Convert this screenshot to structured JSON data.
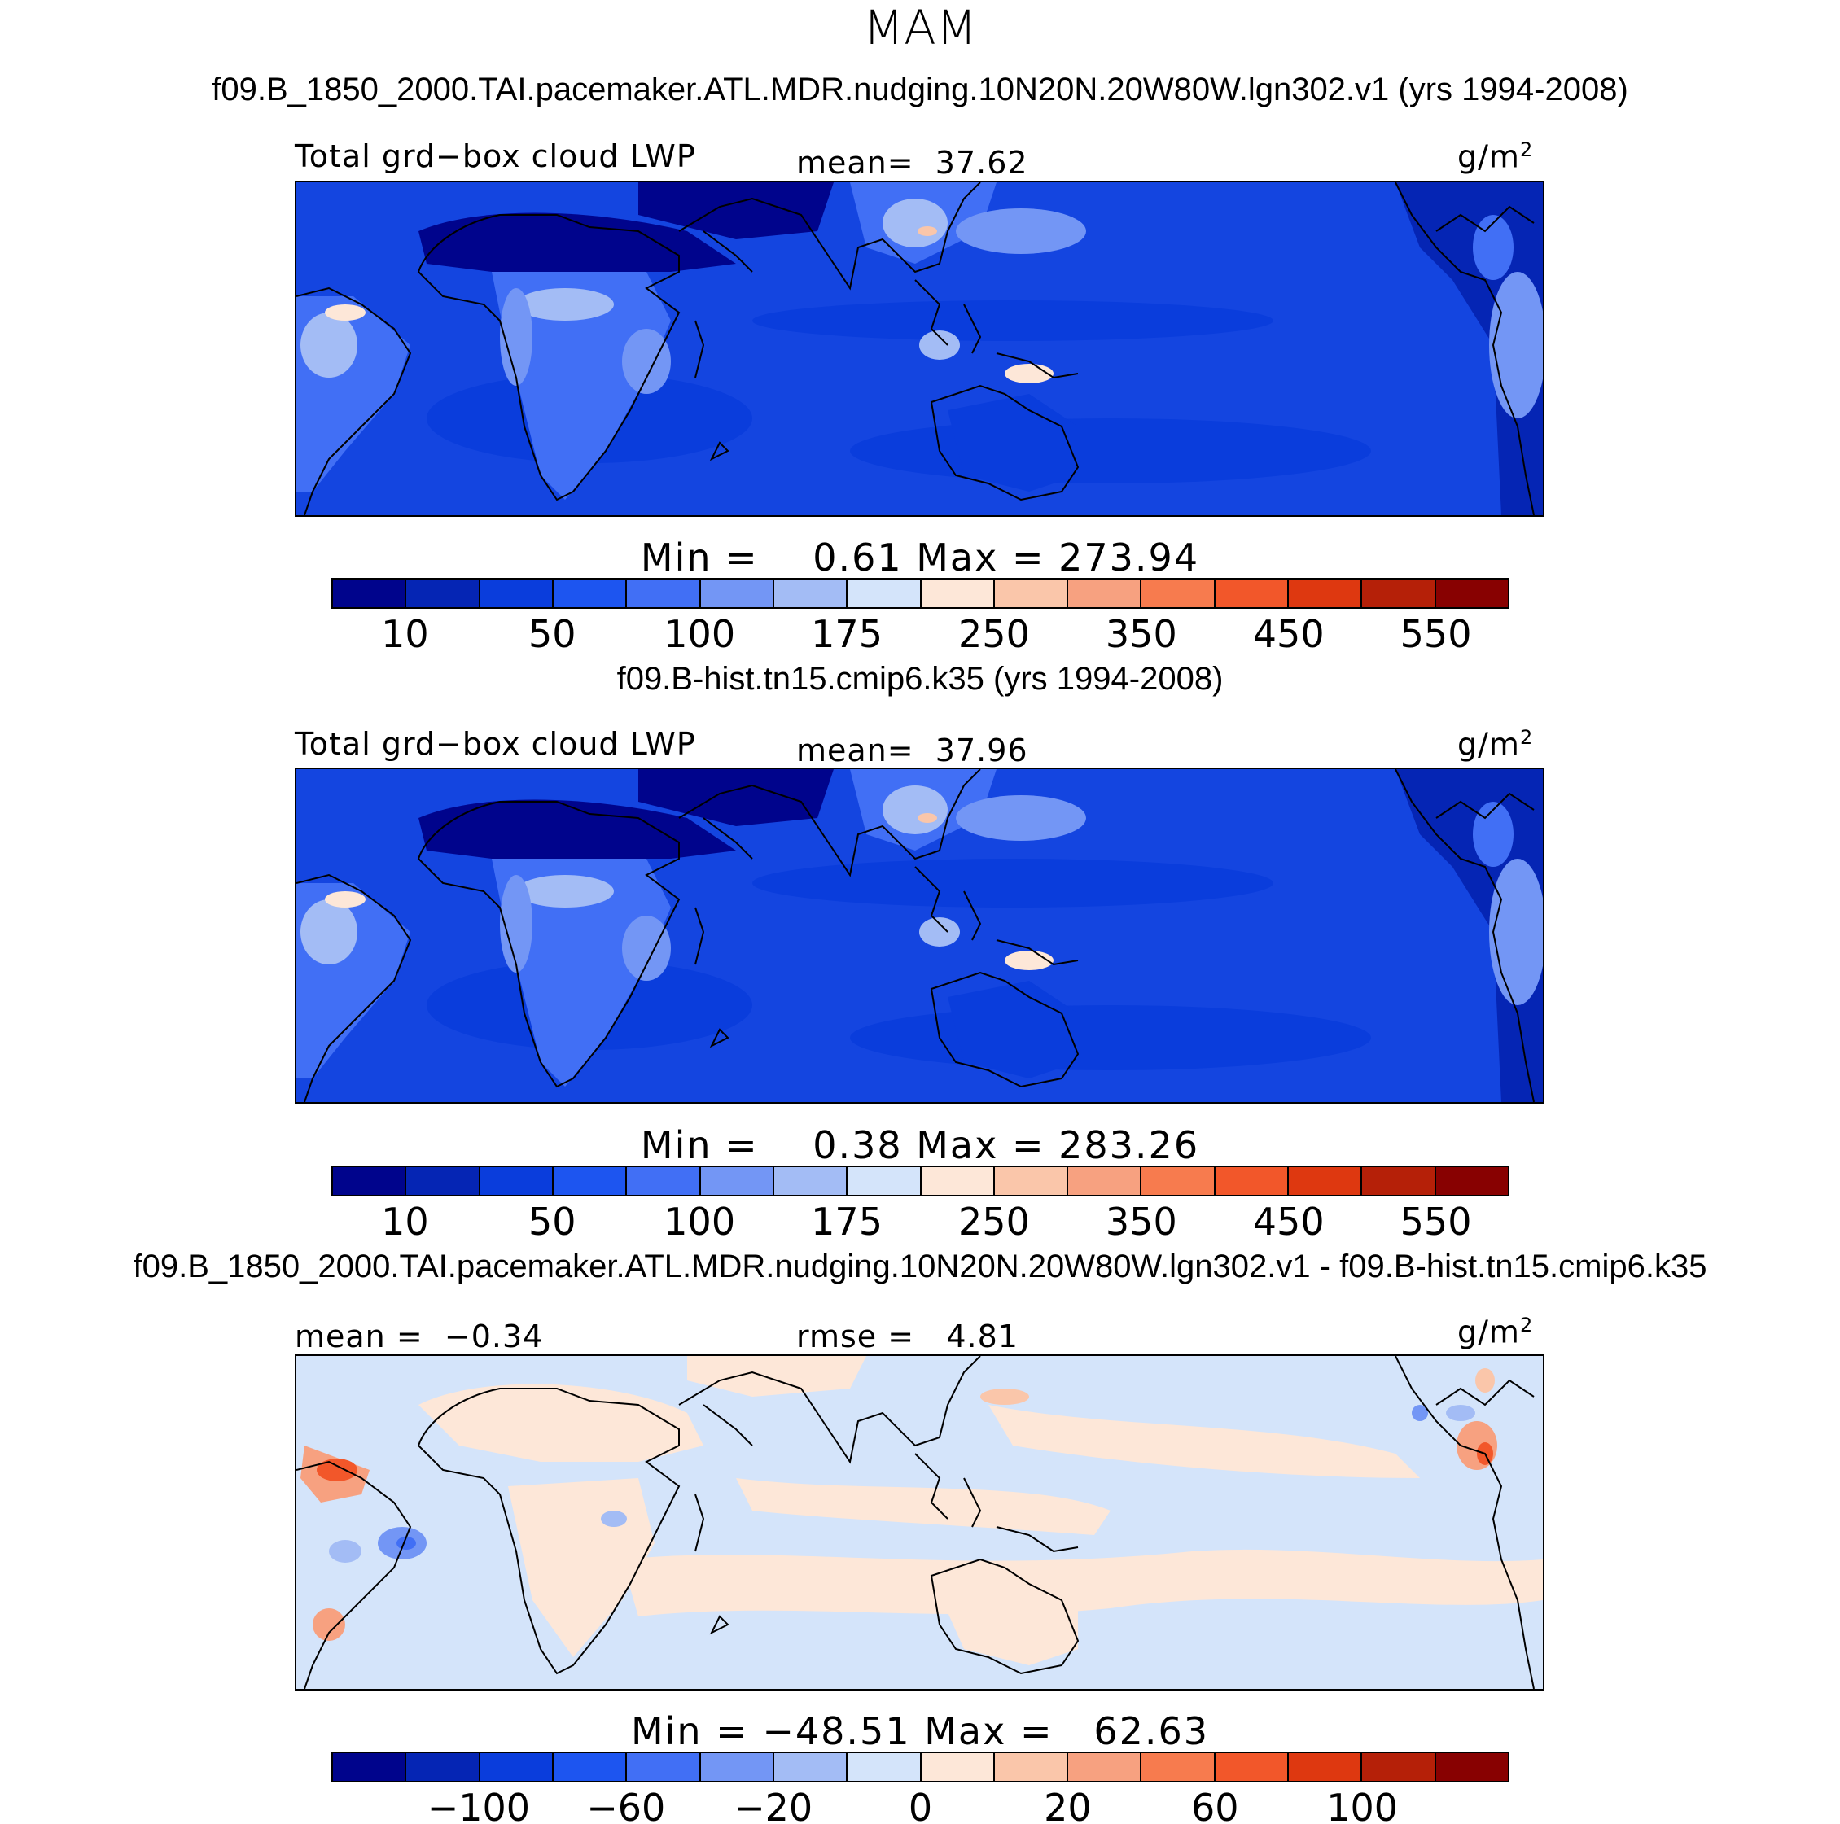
{
  "figure": {
    "season": "MAM"
  },
  "colors": {
    "levels": [
      "#00048c",
      "#0525b4",
      "#0a3ddc",
      "#1d55f0",
      "#416ff5",
      "#7396f5",
      "#a3bcf5",
      "#d4e4fa",
      "#fde7d8",
      "#fac6aa",
      "#f7a180",
      "#f77b4e",
      "#f2572a",
      "#de3810",
      "#b52008",
      "#880101"
    ],
    "ocean_mean": "#1445e0",
    "land_outline": "#000000"
  },
  "panels": [
    {
      "title": "f09.B_1850_2000.TAI.pacemaker.ATL.MDR.nudging.10N20N.20W80W.lgn302.v1 (yrs 1994-2008)",
      "left_label": "Total grd−box cloud LWP",
      "center_label": "mean=",
      "center_value": "37.62",
      "unit": "g/m",
      "unit_exp": "2",
      "min_label": "Min =",
      "min_value": "0.61",
      "max_label": "Max =",
      "max_value": "273.94",
      "ticks": [
        "10",
        "50",
        "100",
        "175",
        "250",
        "350",
        "450",
        "550"
      ]
    },
    {
      "title": "f09.B-hist.tn15.cmip6.k35 (yrs 1994-2008)",
      "left_label": "Total grd−box cloud LWP",
      "center_label": "mean=",
      "center_value": "37.96",
      "unit": "g/m",
      "unit_exp": "2",
      "min_label": "Min =",
      "min_value": "0.38",
      "max_label": "Max =",
      "max_value": "283.26",
      "ticks": [
        "10",
        "50",
        "100",
        "175",
        "250",
        "350",
        "450",
        "550"
      ]
    },
    {
      "title": "f09.B_1850_2000.TAI.pacemaker.ATL.MDR.nudging.10N20N.20W80W.lgn302.v1 - f09.B-hist.tn15.cmip6.k35",
      "left_label": "mean =",
      "left_value": "−0.34",
      "center_label": "rmse =",
      "center_value": "4.81",
      "unit": "g/m",
      "unit_exp": "2",
      "min_label": "Min =",
      "min_value": "−48.51",
      "max_label": "Max =",
      "max_value": "62.63",
      "ticks": [
        "−100",
        "−60",
        "−20",
        "0",
        "20",
        "60",
        "100"
      ]
    }
  ]
}
